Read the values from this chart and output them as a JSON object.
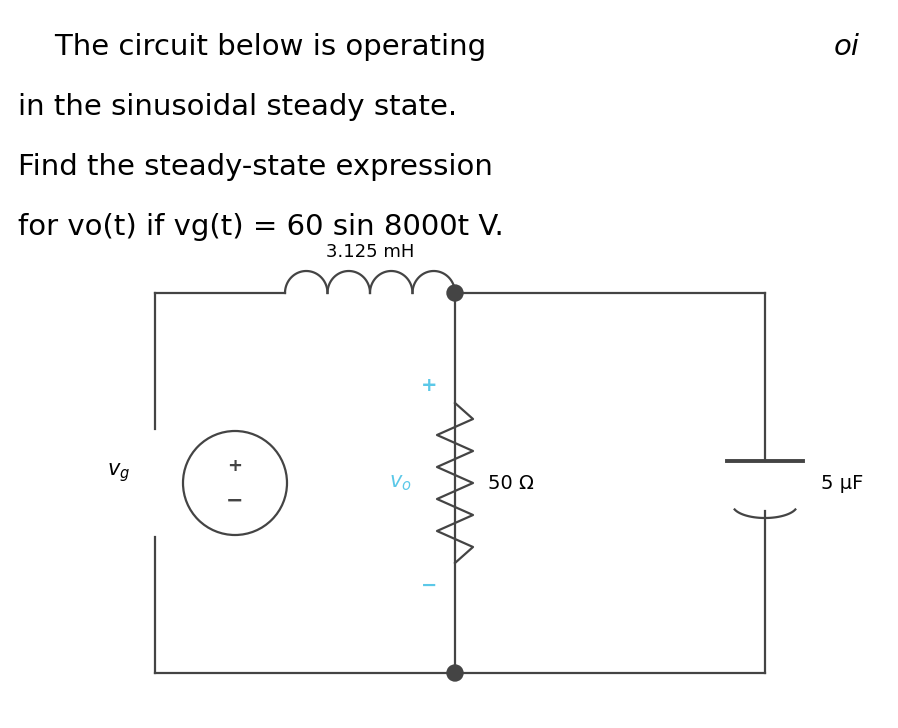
{
  "bg_color": "#ffffff",
  "text_color": "#000000",
  "blue_color": "#5bc8e8",
  "circuit_color": "#444444",
  "title_lines": [
    "    The circuit below is operating",
    "in the sinusoidal steady state.",
    "Find the steady-state expression",
    "for vo(t) if vg(t) = 60 sin 8000t V."
  ],
  "corner_text": "oi",
  "inductor_label": "3.125 mH",
  "resistor_label": "50 Ω",
  "capacitor_label": "5 μF",
  "vo_label": "v_o",
  "vg_label": "v_g",
  "title_fontsize": 21,
  "label_fontsize": 14,
  "circuit_lw": 1.6
}
